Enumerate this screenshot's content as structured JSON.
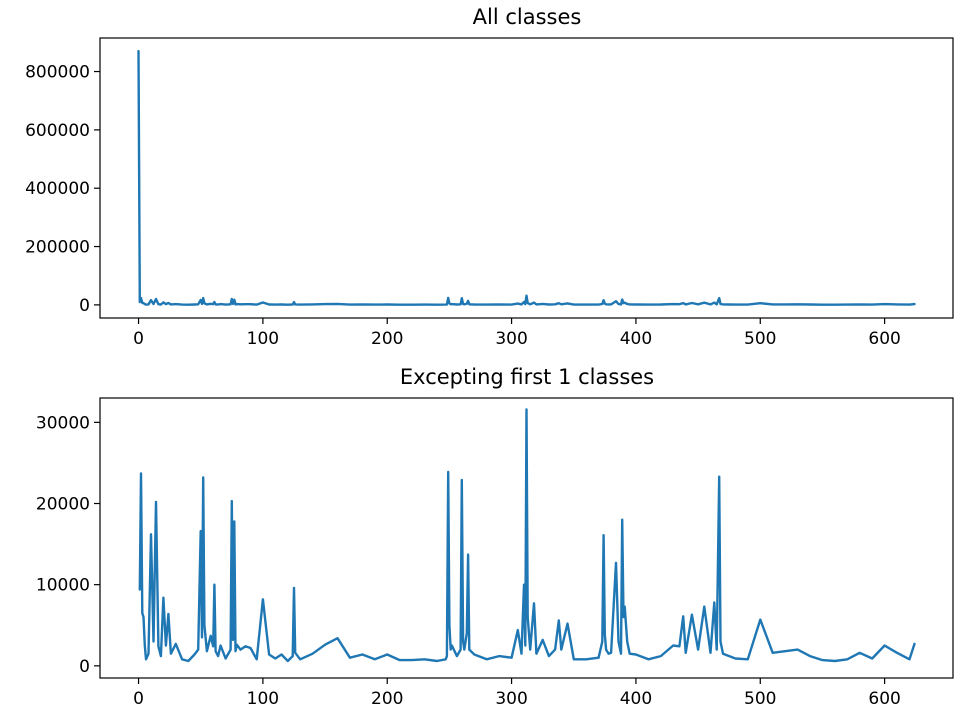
{
  "colors": {
    "series": "#1f77b4"
  },
  "chart_data": [
    {
      "type": "line",
      "title": "All classes",
      "xlabel": "",
      "ylabel": "",
      "xlim": [
        -31,
        655
      ],
      "ylim": [
        -45000,
        915000
      ],
      "xticks": [
        0,
        100,
        200,
        300,
        400,
        500,
        600
      ],
      "yticks": [
        0,
        200000,
        400000,
        600000,
        800000
      ],
      "xtick_labels": [
        "0",
        "100",
        "200",
        "300",
        "400",
        "500",
        "600"
      ],
      "ytick_labels": [
        "0",
        "200000",
        "400000",
        "600000",
        "800000"
      ],
      "grid": false,
      "series": [
        {
          "x": [
            0,
            1,
            2,
            3,
            4,
            5,
            6,
            8,
            10,
            12,
            14,
            16,
            18,
            20,
            22,
            24,
            26,
            30,
            35,
            40,
            45,
            48,
            50,
            51,
            52,
            53,
            55,
            58,
            60,
            61,
            62,
            64,
            66,
            70,
            74,
            75,
            76,
            77,
            78,
            79,
            82,
            86,
            90,
            95,
            100,
            105,
            110,
            115,
            120,
            124,
            125,
            126,
            130,
            140,
            150,
            160,
            170,
            180,
            190,
            200,
            210,
            220,
            230,
            240,
            247,
            248,
            249,
            250,
            251,
            252,
            256,
            259,
            260,
            261,
            262,
            264,
            265,
            266,
            270,
            280,
            290,
            300,
            305,
            308,
            310,
            311,
            312,
            313,
            315,
            318,
            320,
            325,
            330,
            335,
            338,
            340,
            345,
            350,
            360,
            370,
            373,
            374,
            375,
            376,
            378,
            380,
            384,
            386,
            388,
            389,
            390,
            391,
            393,
            395,
            400,
            410,
            420,
            430,
            435,
            438,
            440,
            445,
            450,
            455,
            460,
            463,
            465,
            467,
            468,
            470,
            475,
            480,
            490,
            500,
            510,
            520,
            530,
            540,
            550,
            560,
            570,
            580,
            590,
            600,
            610,
            620,
            624
          ],
          "y": [
            870000,
            9400,
            23700,
            6500,
            6000,
            2500,
            800,
            1500,
            16200,
            3000,
            20200,
            2400,
            1200,
            8400,
            2500,
            6400,
            1500,
            2700,
            800,
            600,
            1400,
            2000,
            16600,
            3500,
            23200,
            5000,
            1800,
            3700,
            2400,
            10000,
            1800,
            1200,
            2500,
            900,
            2000,
            20300,
            3200,
            17800,
            1800,
            2600,
            2000,
            2400,
            2200,
            800,
            8200,
            1400,
            900,
            1400,
            600,
            1200,
            9600,
            1600,
            800,
            1500,
            2600,
            3400,
            1000,
            1400,
            800,
            1400,
            700,
            700,
            800,
            600,
            800,
            1200,
            23900,
            5000,
            2000,
            2500,
            1200,
            2000,
            22900,
            3000,
            2000,
            4000,
            13700,
            2000,
            1400,
            800,
            1200,
            1000,
            4400,
            1500,
            10000,
            2500,
            31600,
            6000,
            2000,
            7700,
            1500,
            3200,
            1200,
            2000,
            5600,
            2000,
            5200,
            800,
            800,
            1000,
            3000,
            16100,
            3900,
            2000,
            1500,
            1600,
            12700,
            3000,
            1500,
            18000,
            6000,
            7300,
            3000,
            1500,
            1400,
            800,
            1200,
            2500,
            2400,
            6100,
            1600,
            6300,
            2000,
            7300,
            1600,
            7800,
            2000,
            23300,
            3000,
            1500,
            1200,
            900,
            800,
            5700,
            1600,
            1800,
            2000,
            1200,
            700,
            600,
            800,
            1600,
            900,
            2500,
            1600,
            800,
            2700
          ]
        }
      ]
    },
    {
      "type": "line",
      "title": "Excepting first 1 classes",
      "xlabel": "",
      "ylabel": "",
      "xlim": [
        -31,
        655
      ],
      "ylim": [
        -1500,
        33000
      ],
      "xticks": [
        0,
        100,
        200,
        300,
        400,
        500,
        600
      ],
      "yticks": [
        0,
        10000,
        20000,
        30000
      ],
      "xtick_labels": [
        "0",
        "100",
        "200",
        "300",
        "400",
        "500",
        "600"
      ],
      "ytick_labels": [
        "0",
        "10000",
        "20000",
        "30000"
      ],
      "grid": false,
      "series": [
        {
          "x": [
            1,
            2,
            3,
            4,
            5,
            6,
            8,
            10,
            12,
            14,
            16,
            18,
            20,
            22,
            24,
            26,
            30,
            35,
            40,
            45,
            48,
            50,
            51,
            52,
            53,
            55,
            58,
            60,
            61,
            62,
            64,
            66,
            70,
            74,
            75,
            76,
            77,
            78,
            79,
            82,
            86,
            90,
            95,
            100,
            105,
            110,
            115,
            120,
            124,
            125,
            126,
            130,
            140,
            150,
            160,
            170,
            180,
            190,
            200,
            210,
            220,
            230,
            240,
            247,
            248,
            249,
            250,
            251,
            252,
            256,
            259,
            260,
            261,
            262,
            264,
            265,
            266,
            270,
            280,
            290,
            300,
            305,
            308,
            310,
            311,
            312,
            313,
            315,
            318,
            320,
            325,
            330,
            335,
            338,
            340,
            345,
            350,
            360,
            370,
            373,
            374,
            375,
            376,
            378,
            380,
            384,
            386,
            388,
            389,
            390,
            391,
            393,
            395,
            400,
            410,
            420,
            430,
            435,
            438,
            440,
            445,
            450,
            455,
            460,
            463,
            465,
            467,
            468,
            470,
            475,
            480,
            490,
            500,
            510,
            520,
            530,
            540,
            550,
            560,
            570,
            580,
            590,
            600,
            610,
            620,
            624
          ],
          "y": [
            9400,
            23700,
            6500,
            6000,
            2500,
            800,
            1500,
            16200,
            3000,
            20200,
            2400,
            1200,
            8400,
            2500,
            6400,
            1500,
            2700,
            800,
            600,
            1400,
            2000,
            16600,
            3500,
            23200,
            5000,
            1800,
            3700,
            2400,
            10000,
            1800,
            1200,
            2500,
            900,
            2000,
            20300,
            3200,
            17800,
            1800,
            2600,
            2000,
            2400,
            2200,
            800,
            8200,
            1400,
            900,
            1400,
            600,
            1200,
            9600,
            1600,
            800,
            1500,
            2600,
            3400,
            1000,
            1400,
            800,
            1400,
            700,
            700,
            800,
            600,
            800,
            1200,
            23900,
            5000,
            2000,
            2500,
            1200,
            2000,
            22900,
            3000,
            2000,
            4000,
            13700,
            2000,
            1400,
            800,
            1200,
            1000,
            4400,
            1500,
            10000,
            2500,
            31600,
            6000,
            2000,
            7700,
            1500,
            3200,
            1200,
            2000,
            5600,
            2000,
            5200,
            800,
            800,
            1000,
            3000,
            16100,
            3900,
            2000,
            1500,
            1600,
            12700,
            3000,
            1500,
            18000,
            6000,
            7300,
            3000,
            1500,
            1400,
            800,
            1200,
            2500,
            2400,
            6100,
            1600,
            6300,
            2000,
            7300,
            1600,
            7800,
            2000,
            23300,
            3000,
            1500,
            1200,
            900,
            800,
            5700,
            1600,
            1800,
            2000,
            1200,
            700,
            600,
            800,
            1600,
            900,
            2500,
            1600,
            800,
            2700
          ]
        }
      ]
    }
  ]
}
